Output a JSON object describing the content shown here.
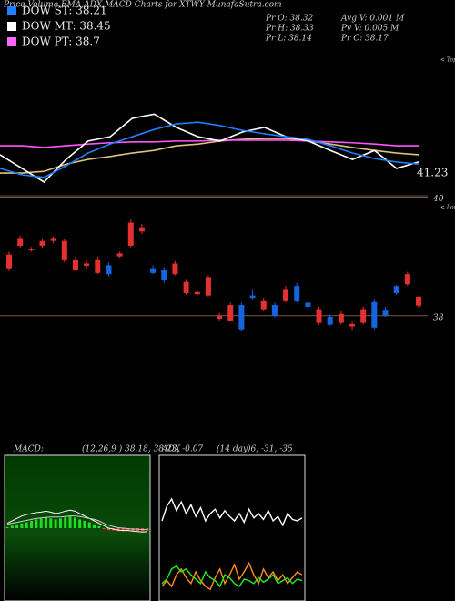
{
  "header": {
    "title": "Price,Volume,EMA,ADX,MACD Charts for XTWY MunafaSutra.com"
  },
  "legend": [
    {
      "text": "DOW ST: 38.21",
      "color": "#1e7fff"
    },
    {
      "text": "DOW MT: 38.45",
      "color": "#ffffff"
    },
    {
      "text": "DOW PT: 38.7",
      "color": "#ff66ff"
    }
  ],
  "quote": [
    "Pr  O: 38.32",
    "Avg V: 0.001 M",
    "Pr  H: 38.33",
    "Pv  V: 0.005 M",
    "Pr  L: 38.14",
    "Pr  C: 38.17"
  ],
  "chart_data": [
    {
      "type": "line",
      "ylim": [
        40.7,
        44
      ],
      "last_label": "41.23",
      "note": "< Tops",
      "series": [
        {
          "color": "#e0c080",
          "values": [
            41.23,
            41.23,
            41.27,
            41.44,
            41.55,
            41.62,
            41.7,
            41.76,
            41.87,
            41.91,
            41.98,
            42.02,
            42.04,
            42.04,
            41.98,
            41.91,
            41.83,
            41.76,
            41.7,
            41.66
          ]
        },
        {
          "color": "#ff55ff",
          "values": [
            41.87,
            41.87,
            41.83,
            41.87,
            41.91,
            41.94,
            41.96,
            41.96,
            41.98,
            41.98,
            42.0,
            42.0,
            42.0,
            42.0,
            41.98,
            41.96,
            41.94,
            41.91,
            41.87,
            41.87
          ]
        },
        {
          "color": "#ffffff",
          "values": [
            41.66,
            41.34,
            41.02,
            41.55,
            41.98,
            42.08,
            42.51,
            42.61,
            42.3,
            42.08,
            41.98,
            42.19,
            42.3,
            42.08,
            41.98,
            41.76,
            41.55,
            41.76,
            41.34,
            41.49
          ]
        },
        {
          "color": "#1e7fff",
          "values": [
            41.34,
            41.19,
            41.13,
            41.4,
            41.7,
            41.91,
            42.08,
            42.25,
            42.38,
            42.42,
            42.34,
            42.23,
            42.15,
            42.08,
            42.02,
            41.87,
            41.7,
            41.57,
            41.49,
            41.44
          ]
        }
      ]
    },
    {
      "type": "candlestick",
      "ylim": [
        36,
        40.1
      ],
      "yticks": [
        38,
        40
      ],
      "grid_color": "#7a5a3a",
      "note": "< Lows",
      "up_color": "#1565e0",
      "down_color": "#e53030",
      "open": [
        39.03,
        39.31,
        39.13,
        39.26,
        39.31,
        39.26,
        38.95,
        38.88,
        38.95,
        38.7,
        39.05,
        39.57,
        39.49,
        38.72,
        38.6,
        38.88,
        38.57,
        38.4,
        38.65,
        38.0,
        38.18,
        37.77,
        38.3,
        38.26,
        38.0,
        38.45,
        38.25,
        38.15,
        38.11,
        37.85,
        38.03,
        37.86,
        38.11,
        37.8,
        38.0,
        38.38,
        38.7,
        38.32
      ],
      "high": [
        39.08,
        39.35,
        39.16,
        39.3,
        39.34,
        39.3,
        39.0,
        38.92,
        39.0,
        38.9,
        39.08,
        39.62,
        39.55,
        38.85,
        38.82,
        38.92,
        38.62,
        38.44,
        38.68,
        38.05,
        38.22,
        38.22,
        38.45,
        38.3,
        38.22,
        38.5,
        38.55,
        38.26,
        38.15,
        38.02,
        38.08,
        37.9,
        38.15,
        38.28,
        38.15,
        38.52,
        38.74,
        38.33
      ],
      "low": [
        38.75,
        39.15,
        39.08,
        39.15,
        39.22,
        38.9,
        38.75,
        38.8,
        38.7,
        38.66,
        38.98,
        39.15,
        39.38,
        38.7,
        38.55,
        38.68,
        38.35,
        38.33,
        38.32,
        37.92,
        37.9,
        37.74,
        38.28,
        38.08,
        37.97,
        38.22,
        38.22,
        38.12,
        37.85,
        37.83,
        37.85,
        37.76,
        37.85,
        37.77,
        37.98,
        38.35,
        38.5,
        38.14
      ],
      "close": [
        38.8,
        39.18,
        39.1,
        39.18,
        39.26,
        38.95,
        38.78,
        38.84,
        38.72,
        38.85,
        39.0,
        39.18,
        39.42,
        38.8,
        38.78,
        38.7,
        38.38,
        38.36,
        38.34,
        37.95,
        37.92,
        38.18,
        38.34,
        38.11,
        38.18,
        38.26,
        38.5,
        38.22,
        37.88,
        37.98,
        37.88,
        37.82,
        37.88,
        38.23,
        38.1,
        38.5,
        38.53,
        38.17
      ]
    },
    {
      "type": "macd",
      "title": "MACD:",
      "subtitle": "(12,26,9 ) 38.18, 38.23, -0.07",
      "ylim": [
        -1.5,
        1.5
      ],
      "histogram": {
        "pos_color": "#22dd22",
        "neg_color": "#ff4040",
        "values": [
          0.02,
          0.05,
          0.08,
          0.1,
          0.12,
          0.15,
          0.18,
          0.2,
          0.22,
          0.2,
          0.18,
          0.2,
          0.22,
          0.24,
          0.22,
          0.18,
          0.15,
          0.12,
          0.08,
          0.04,
          -0.02,
          -0.04,
          -0.05,
          -0.06,
          -0.06,
          -0.05,
          -0.05,
          -0.06,
          -0.06,
          -0.05
        ]
      },
      "series": [
        {
          "color": "#ffffff",
          "values": [
            0.1,
            0.15,
            0.2,
            0.25,
            0.28,
            0.3,
            0.32,
            0.33,
            0.35,
            0.33,
            0.3,
            0.32,
            0.35,
            0.37,
            0.35,
            0.3,
            0.25,
            0.2,
            0.15,
            0.1,
            0.05,
            0.0,
            -0.02,
            -0.04,
            -0.05,
            -0.05,
            -0.06,
            -0.07,
            -0.08,
            -0.07
          ]
        },
        {
          "color": "#cccccc",
          "values": [
            0.08,
            0.1,
            0.12,
            0.14,
            0.16,
            0.18,
            0.2,
            0.21,
            0.22,
            0.23,
            0.23,
            0.23,
            0.24,
            0.25,
            0.25,
            0.24,
            0.22,
            0.2,
            0.18,
            0.15,
            0.1,
            0.06,
            0.03,
            0.01,
            0,
            -0.01,
            -0.02,
            -0.02,
            -0.03,
            -0.03
          ]
        }
      ]
    },
    {
      "type": "adx",
      "title": "ADX",
      "subtitle": "(14 day)6, -31, -35",
      "ylim": [
        0,
        100
      ],
      "series": [
        {
          "color": "#ffffff",
          "values": [
            55,
            65,
            70,
            62,
            68,
            60,
            66,
            58,
            64,
            55,
            60,
            63,
            57,
            62,
            58,
            55,
            60,
            54,
            63,
            57,
            60,
            56,
            62,
            55,
            58,
            52,
            60,
            56,
            55,
            57
          ]
        },
        {
          "color": "#ff8c1a",
          "values": [
            10,
            14,
            10,
            18,
            22,
            16,
            12,
            20,
            14,
            10,
            8,
            16,
            22,
            12,
            18,
            25,
            15,
            20,
            26,
            18,
            12,
            22,
            16,
            20,
            14,
            18,
            12,
            16,
            20,
            18
          ]
        },
        {
          "color": "#22ee22",
          "values": [
            12,
            15,
            22,
            24,
            20,
            22,
            18,
            15,
            12,
            20,
            16,
            14,
            10,
            18,
            16,
            12,
            10,
            15,
            14,
            12,
            16,
            13,
            15,
            18,
            12,
            14,
            16,
            12,
            15,
            14
          ]
        }
      ]
    }
  ]
}
